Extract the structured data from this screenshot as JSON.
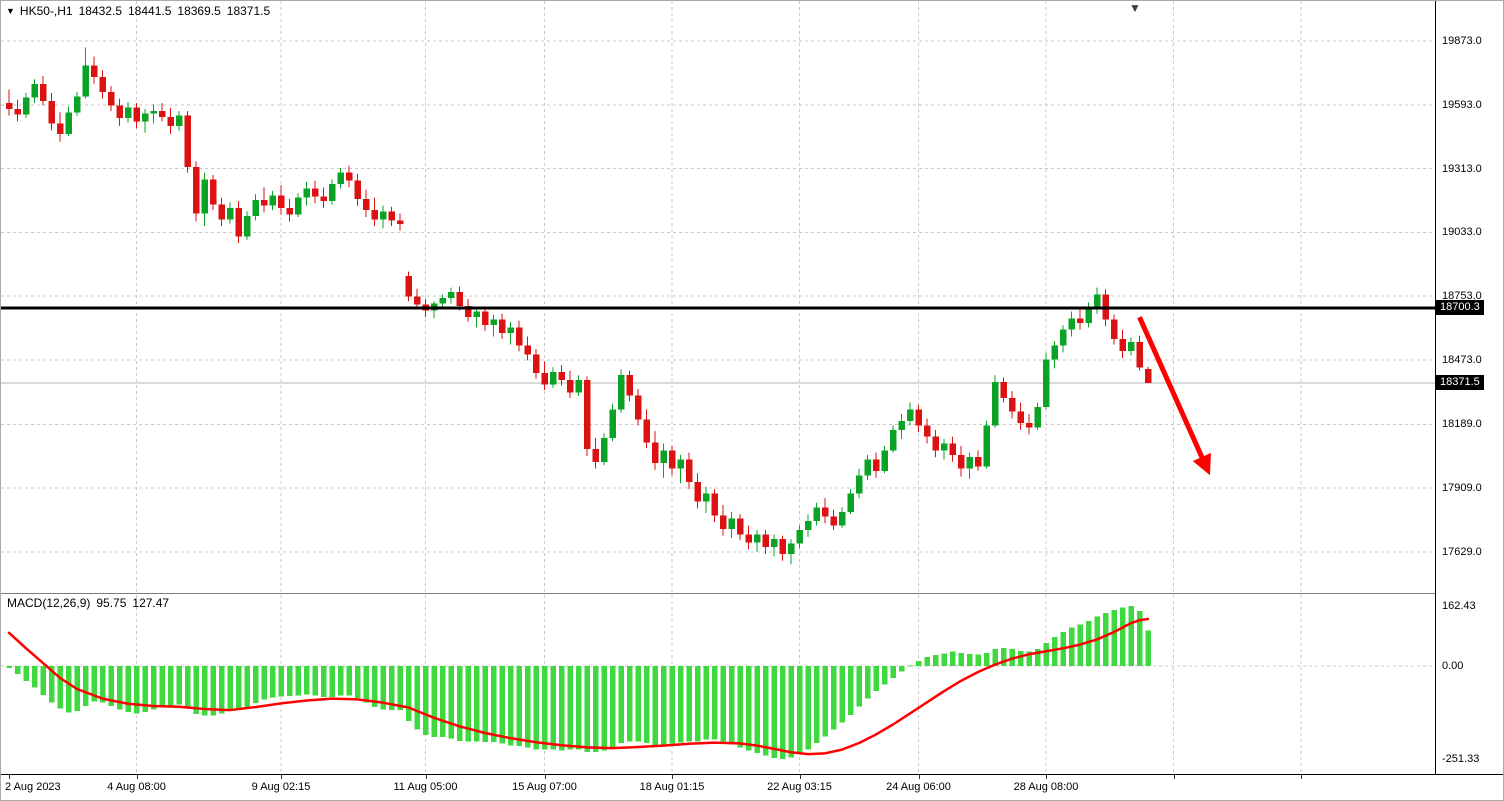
{
  "header": {
    "symbol_period": "HK50-,H1",
    "open": "18432.5",
    "high": "18441.5",
    "low": "18369.5",
    "close": "18371.5"
  },
  "price_axis": {
    "labels": [
      "19873.0",
      "19593.0",
      "19313.0",
      "19033.0",
      "18753.0",
      "18473.0",
      "18189.0",
      "17909.0",
      "17629.0"
    ],
    "hline_tag": "18700.3",
    "current_tag": "18371.5"
  },
  "macd": {
    "label": "MACD(12,26,9)",
    "value_main": "95.75",
    "value_signal": "127.47",
    "axis": [
      "162.43",
      "0.00",
      "-251.33"
    ]
  },
  "colors": {
    "bull": "#0aa326",
    "bear": "#dc1111",
    "doji": "#222222",
    "macd_bar": "#3fd93f",
    "signal_line": "#ff0000",
    "arrow": "#ff0000",
    "grid": "#c9c9c9",
    "hline": "#000000",
    "current_line": "#b5b5b5",
    "tag_bg": "#000000",
    "tag_text": "#ffffff"
  },
  "chart_data": {
    "type": "candlestick+macd",
    "symbol": "HK50-",
    "timeframe": "H1",
    "title": "HK50-,H1 18432.5 18441.5 18369.5 18371.5",
    "price_ylim": [
      17629.0,
      19873.0
    ],
    "hline": 18700.3,
    "current_price": 18371.5,
    "grid": true,
    "candles": [
      [
        19600,
        19660,
        19545,
        19575
      ],
      [
        19575,
        19615,
        19520,
        19550
      ],
      [
        19550,
        19645,
        19535,
        19625
      ],
      [
        19625,
        19705,
        19600,
        19685
      ],
      [
        19685,
        19720,
        19590,
        19610
      ],
      [
        19610,
        19645,
        19480,
        19510
      ],
      [
        19510,
        19560,
        19430,
        19465
      ],
      [
        19465,
        19585,
        19455,
        19560
      ],
      [
        19560,
        19650,
        19545,
        19630
      ],
      [
        19630,
        19845,
        19620,
        19765
      ],
      [
        19765,
        19805,
        19685,
        19715
      ],
      [
        19715,
        19745,
        19620,
        19650
      ],
      [
        19650,
        19675,
        19565,
        19590
      ],
      [
        19590,
        19620,
        19500,
        19535
      ],
      [
        19535,
        19605,
        19515,
        19580
      ],
      [
        19580,
        19600,
        19490,
        19520
      ],
      [
        19520,
        19575,
        19470,
        19555
      ],
      [
        19555,
        19595,
        19510,
        19565
      ],
      [
        19565,
        19600,
        19520,
        19540
      ],
      [
        19540,
        19580,
        19465,
        19500
      ],
      [
        19500,
        19565,
        19480,
        19545
      ],
      [
        19545,
        19565,
        19295,
        19320
      ],
      [
        19320,
        19345,
        19080,
        19115
      ],
      [
        19115,
        19295,
        19060,
        19265
      ],
      [
        19265,
        19285,
        19130,
        19155
      ],
      [
        19155,
        19185,
        19060,
        19090
      ],
      [
        19090,
        19165,
        19070,
        19140
      ],
      [
        19140,
        19170,
        18985,
        19015
      ],
      [
        19015,
        19125,
        19000,
        19105
      ],
      [
        19105,
        19200,
        19085,
        19175
      ],
      [
        19175,
        19230,
        19120,
        19150
      ],
      [
        19150,
        19215,
        19130,
        19195
      ],
      [
        19195,
        19240,
        19110,
        19140
      ],
      [
        19140,
        19180,
        19080,
        19110
      ],
      [
        19110,
        19205,
        19100,
        19185
      ],
      [
        19185,
        19255,
        19150,
        19225
      ],
      [
        19225,
        19260,
        19160,
        19190
      ],
      [
        19190,
        19230,
        19140,
        19170
      ],
      [
        19170,
        19265,
        19155,
        19245
      ],
      [
        19245,
        19315,
        19225,
        19295
      ],
      [
        19295,
        19325,
        19230,
        19260
      ],
      [
        19260,
        19290,
        19150,
        19180
      ],
      [
        19180,
        19220,
        19100,
        19130
      ],
      [
        19130,
        19185,
        19060,
        19090
      ],
      [
        19090,
        19150,
        19050,
        19125
      ],
      [
        19125,
        19145,
        19060,
        19085
      ],
      [
        19085,
        19115,
        19040,
        19070
      ],
      [
        18840,
        18860,
        18730,
        18750
      ],
      [
        18750,
        18785,
        18695,
        18715
      ],
      [
        18715,
        18740,
        18660,
        18690
      ],
      [
        18690,
        18730,
        18655,
        18720
      ],
      [
        18720,
        18760,
        18700,
        18745
      ],
      [
        18745,
        18790,
        18720,
        18770
      ],
      [
        18770,
        18795,
        18690,
        18710
      ],
      [
        18710,
        18740,
        18640,
        18660
      ],
      [
        18660,
        18700,
        18615,
        18685
      ],
      [
        18685,
        18705,
        18600,
        18625
      ],
      [
        18625,
        18670,
        18575,
        18650
      ],
      [
        18650,
        18675,
        18565,
        18590
      ],
      [
        18590,
        18640,
        18540,
        18615
      ],
      [
        18615,
        18645,
        18510,
        18535
      ],
      [
        18535,
        18575,
        18470,
        18495
      ],
      [
        18495,
        18520,
        18390,
        18415
      ],
      [
        18415,
        18465,
        18340,
        18365
      ],
      [
        18365,
        18440,
        18350,
        18420
      ],
      [
        18420,
        18450,
        18360,
        18385
      ],
      [
        18385,
        18425,
        18305,
        18330
      ],
      [
        18330,
        18405,
        18315,
        18385
      ],
      [
        18385,
        18400,
        18050,
        18080
      ],
      [
        18080,
        18130,
        17995,
        18025
      ],
      [
        18025,
        18150,
        18010,
        18130
      ],
      [
        18130,
        18280,
        18115,
        18255
      ],
      [
        18255,
        18430,
        18240,
        18405
      ],
      [
        18405,
        18425,
        18290,
        18315
      ],
      [
        18315,
        18345,
        18185,
        18210
      ],
      [
        18210,
        18255,
        18085,
        18110
      ],
      [
        18110,
        18160,
        17990,
        18020
      ],
      [
        18020,
        18105,
        17955,
        18075
      ],
      [
        18075,
        18095,
        17965,
        17995
      ],
      [
        17995,
        18055,
        17930,
        18035
      ],
      [
        18035,
        18065,
        17905,
        17935
      ],
      [
        17935,
        17975,
        17820,
        17850
      ],
      [
        17850,
        17915,
        17800,
        17885
      ],
      [
        17885,
        17905,
        17760,
        17790
      ],
      [
        17790,
        17835,
        17700,
        17730
      ],
      [
        17730,
        17805,
        17690,
        17775
      ],
      [
        17775,
        17795,
        17680,
        17705
      ],
      [
        17705,
        17745,
        17640,
        17670
      ],
      [
        17670,
        17725,
        17630,
        17705
      ],
      [
        17705,
        17725,
        17620,
        17650
      ],
      [
        17650,
        17705,
        17610,
        17685
      ],
      [
        17685,
        17700,
        17590,
        17620
      ],
      [
        17620,
        17685,
        17575,
        17665
      ],
      [
        17665,
        17745,
        17645,
        17725
      ],
      [
        17725,
        17795,
        17695,
        17765
      ],
      [
        17765,
        17845,
        17745,
        17825
      ],
      [
        17825,
        17865,
        17755,
        17785
      ],
      [
        17785,
        17815,
        17725,
        17745
      ],
      [
        17745,
        17825,
        17735,
        17805
      ],
      [
        17805,
        17905,
        17795,
        17885
      ],
      [
        17885,
        17995,
        17865,
        17965
      ],
      [
        17965,
        18055,
        17945,
        18035
      ],
      [
        18035,
        18065,
        17955,
        17985
      ],
      [
        17985,
        18095,
        17975,
        18075
      ],
      [
        18075,
        18185,
        18065,
        18165
      ],
      [
        18165,
        18235,
        18125,
        18205
      ],
      [
        18205,
        18285,
        18185,
        18255
      ],
      [
        18255,
        18275,
        18155,
        18185
      ],
      [
        18185,
        18215,
        18105,
        18135
      ],
      [
        18135,
        18165,
        18045,
        18075
      ],
      [
        18075,
        18125,
        18035,
        18105
      ],
      [
        18105,
        18135,
        18025,
        18055
      ],
      [
        18055,
        18095,
        17960,
        17995
      ],
      [
        17995,
        18065,
        17950,
        18045
      ],
      [
        18045,
        18075,
        17985,
        18005
      ],
      [
        18005,
        18205,
        17995,
        18185
      ],
      [
        18185,
        18405,
        18175,
        18375
      ],
      [
        18375,
        18395,
        18285,
        18305
      ],
      [
        18305,
        18335,
        18215,
        18245
      ],
      [
        18245,
        18285,
        18165,
        18195
      ],
      [
        18195,
        18235,
        18145,
        18175
      ],
      [
        18175,
        18285,
        18165,
        18265
      ],
      [
        18265,
        18505,
        18255,
        18475
      ],
      [
        18475,
        18555,
        18435,
        18535
      ],
      [
        18535,
        18625,
        18505,
        18605
      ],
      [
        18605,
        18685,
        18575,
        18655
      ],
      [
        18655,
        18705,
        18605,
        18635
      ],
      [
        18635,
        18725,
        18615,
        18705
      ],
      [
        18705,
        18790,
        18675,
        18760
      ],
      [
        18760,
        18782,
        18620,
        18650
      ],
      [
        18650,
        18672,
        18540,
        18565
      ],
      [
        18565,
        18605,
        18480,
        18512
      ],
      [
        18512,
        18572,
        18492,
        18552
      ],
      [
        18552,
        18578,
        18425,
        18440
      ],
      [
        18432.5,
        18441.5,
        18369.5,
        18371.5
      ]
    ],
    "time_ticks": [
      {
        "label": "2 Aug 2023",
        "i": 0
      },
      {
        "label": "4 Aug 08:00",
        "i": 15
      },
      {
        "label": "9 Aug 02:15",
        "i": 32
      },
      {
        "label": "11 Aug 05:00",
        "i": 49
      },
      {
        "label": "15 Aug 07:00",
        "i": 63
      },
      {
        "label": "18 Aug 01:15",
        "i": 78
      },
      {
        "label": "22 Aug 03:15",
        "i": 93
      },
      {
        "label": "24 Aug 06:00",
        "i": 107
      },
      {
        "label": "28 Aug 08:00",
        "i": 122
      },
      {
        "label": "",
        "i": 137
      },
      {
        "label": "",
        "i": 152
      }
    ],
    "macd_range": [
      -251.33,
      162.43
    ],
    "macd_hist": [
      -5,
      -22,
      -40,
      -58,
      -78,
      -98,
      -115,
      -125,
      -122,
      -108,
      -96,
      -98,
      -108,
      -118,
      -124,
      -128,
      -124,
      -117,
      -111,
      -108,
      -104,
      -114,
      -130,
      -134,
      -134,
      -128,
      -121,
      -119,
      -111,
      -100,
      -91,
      -85,
      -82,
      -81,
      -79,
      -77,
      -79,
      -84,
      -84,
      -79,
      -79,
      -87,
      -99,
      -111,
      -117,
      -119,
      -119,
      -148,
      -172,
      -186,
      -192,
      -192,
      -196,
      -202,
      -204,
      -204,
      -206,
      -206,
      -210,
      -215,
      -216,
      -220,
      -225,
      -226,
      -226,
      -228,
      -226,
      -226,
      -232,
      -233,
      -228,
      -220,
      -208,
      -204,
      -204,
      -208,
      -213,
      -213,
      -210,
      -207,
      -204,
      -204,
      -199,
      -199,
      -204,
      -212,
      -220,
      -228,
      -235,
      -242,
      -248,
      -251.33,
      -247,
      -238,
      -226,
      -208,
      -190,
      -172,
      -152,
      -132,
      -110,
      -88,
      -68,
      -50,
      -32,
      -15,
      2,
      14,
      24,
      30,
      34,
      39,
      36,
      33,
      31,
      36,
      46,
      49,
      46,
      41,
      39,
      46,
      62,
      78,
      92,
      104,
      112,
      122,
      134,
      144,
      152,
      158,
      162.43,
      149,
      95.75
    ],
    "macd_signal_points": [
      [
        0,
        90
      ],
      [
        2,
        48
      ],
      [
        4,
        8
      ],
      [
        6,
        -32
      ],
      [
        8,
        -62
      ],
      [
        11,
        -88
      ],
      [
        14,
        -102
      ],
      [
        17,
        -108
      ],
      [
        20,
        -110
      ],
      [
        23,
        -116
      ],
      [
        26,
        -119
      ],
      [
        29,
        -111
      ],
      [
        32,
        -101
      ],
      [
        35,
        -93
      ],
      [
        38,
        -88
      ],
      [
        41,
        -90
      ],
      [
        44,
        -99
      ],
      [
        47,
        -112
      ],
      [
        50,
        -140
      ],
      [
        53,
        -163
      ],
      [
        56,
        -181
      ],
      [
        59,
        -195
      ],
      [
        62,
        -206
      ],
      [
        65,
        -214
      ],
      [
        68,
        -220
      ],
      [
        71,
        -222
      ],
      [
        74,
        -219
      ],
      [
        77,
        -215
      ],
      [
        80,
        -210
      ],
      [
        83,
        -207
      ],
      [
        86,
        -209
      ],
      [
        88,
        -215
      ],
      [
        90,
        -224
      ],
      [
        92,
        -233
      ],
      [
        94,
        -238
      ],
      [
        96,
        -236
      ],
      [
        98,
        -226
      ],
      [
        100,
        -208
      ],
      [
        102,
        -185
      ],
      [
        104,
        -158
      ],
      [
        106,
        -128
      ],
      [
        108,
        -98
      ],
      [
        110,
        -68
      ],
      [
        112,
        -40
      ],
      [
        114,
        -16
      ],
      [
        116,
        4
      ],
      [
        118,
        20
      ],
      [
        120,
        32
      ],
      [
        122,
        40
      ],
      [
        124,
        48
      ],
      [
        126,
        58
      ],
      [
        128,
        72
      ],
      [
        130,
        92
      ],
      [
        131,
        104
      ],
      [
        132,
        116
      ],
      [
        133,
        124
      ],
      [
        134,
        127.47
      ]
    ],
    "annotation_arrow": {
      "from": {
        "i": 133,
        "price": 18660
      },
      "to": {
        "i": 141,
        "price": 17990
      }
    }
  }
}
